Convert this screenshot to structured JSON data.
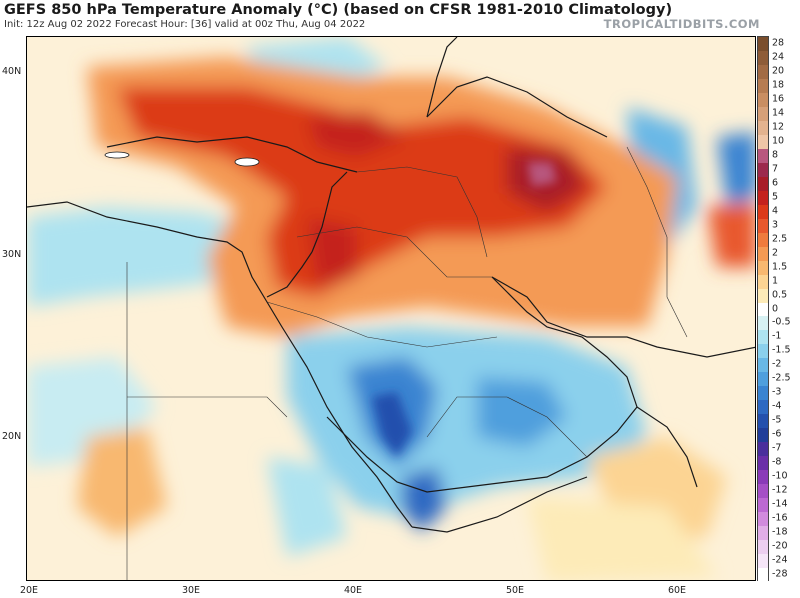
{
  "header": {
    "title": "GEFS 850 hPa Temperature Anomaly (°C) (based on CFSR 1981-2010 Climatology)",
    "subtitle": "Init: 12z Aug 02 2022   Forecast Hour: [36]   valid at 00z Thu, Aug 04 2022",
    "brand": "TROPICALTIDBITS.COM"
  },
  "map": {
    "lat_labels": [
      "40N",
      "30N",
      "20N"
    ],
    "lon_labels": [
      "20E",
      "30E",
      "40E",
      "50E",
      "60E"
    ]
  },
  "colorbar": {
    "levels": [
      "28",
      "24",
      "20",
      "18",
      "16",
      "14",
      "12",
      "10",
      "8",
      "7",
      "6",
      "5",
      "4",
      "3",
      "2.5",
      "2",
      "1.5",
      "1",
      "0.5",
      "0",
      "-0.5",
      "-1",
      "-1.5",
      "-2",
      "-2.5",
      "-3",
      "-4",
      "-5",
      "-6",
      "-7",
      "-8",
      "-10",
      "-12",
      "-14",
      "-16",
      "-18",
      "-20",
      "-24",
      "-28"
    ],
    "colors": [
      "#7a4e2d",
      "#8e5c38",
      "#a26b44",
      "#b67c52",
      "#c98e62",
      "#d6a078",
      "#e3b38f",
      "#efc6a7",
      "#b8577e",
      "#9c2a4d",
      "#a81d28",
      "#c4221d",
      "#dc3a19",
      "#e8582d",
      "#ef7b3d",
      "#f49a54",
      "#f8b870",
      "#fcd493",
      "#fdebb8",
      "#ffffff",
      "#d7f1f3",
      "#aee3f0",
      "#8bd0ec",
      "#69b8e6",
      "#4f9fdd",
      "#3a84d1",
      "#2e69c2",
      "#2450ad",
      "#213e99",
      "#4a2f9c",
      "#6a2fa8",
      "#8a3bb8",
      "#a550c6",
      "#bc69d2",
      "#d18bdd",
      "#e1aee7",
      "#edcff0",
      "#f6e6f8",
      "#ffffff"
    ]
  }
}
